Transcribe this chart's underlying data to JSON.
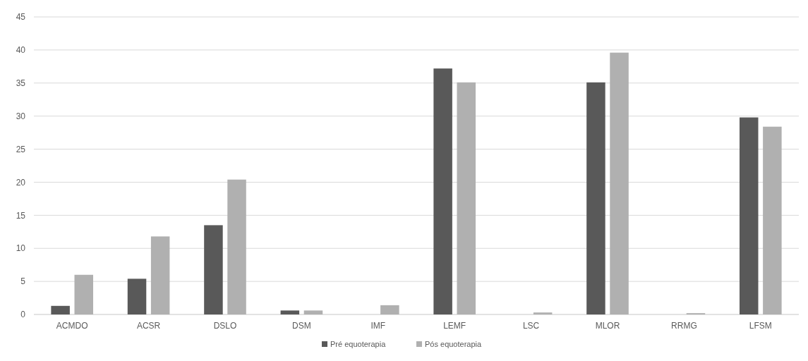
{
  "chart_data": {
    "type": "bar",
    "categories": [
      "ACMDO",
      "ACSR",
      "DSLO",
      "DSM",
      "IMF",
      "LEMF",
      "LSC",
      "MLOR",
      "RRMG",
      "LFSM"
    ],
    "series": [
      {
        "name": "Pré equoterapia",
        "color": "#595959",
        "values": [
          1.3,
          5.4,
          13.5,
          0.6,
          0,
          37.2,
          0,
          35.1,
          0,
          29.8
        ]
      },
      {
        "name": "Pós equoterapia",
        "color": "#b0b0b0",
        "values": [
          6.0,
          11.8,
          20.4,
          0.6,
          1.4,
          35.1,
          0.3,
          39.6,
          0.2,
          28.4
        ]
      }
    ],
    "ylim": [
      0,
      45
    ],
    "yticks": [
      0,
      5,
      10,
      15,
      20,
      25,
      30,
      35,
      40,
      45
    ],
    "grid": "y",
    "legend": "bottom"
  }
}
